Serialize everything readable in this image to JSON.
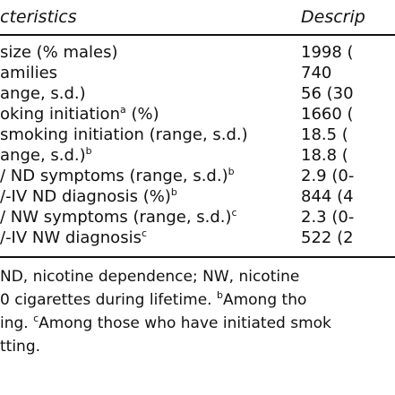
{
  "header": {
    "characteristics": "cteristics",
    "description": "Descrip"
  },
  "rows": [
    {
      "label": " size (% males)",
      "sup": "",
      "label_after": "",
      "value": "1998 ("
    },
    {
      "label": "amilies",
      "sup": "",
      "label_after": "",
      "value": "740"
    },
    {
      "label": "ange, s.d.)",
      "sup": "",
      "label_after": "",
      "value": "56 (30"
    },
    {
      "label": "oking initiation",
      "sup": "a",
      "label_after": " (%)",
      "value": "1660 ("
    },
    {
      "label": " smoking initiation (range, s.d.)",
      "sup": "",
      "label_after": "",
      "value": "18.5 ("
    },
    {
      "label": "ange, s.d.)",
      "sup": "b",
      "label_after": "",
      "value": "18.8 ("
    },
    {
      "label": "/ ND symptoms (range, s.d.)",
      "sup": "b",
      "label_after": "",
      "value": "2.9 (0-"
    },
    {
      "label": "/-IV ND diagnosis (%)",
      "sup": "b",
      "label_after": "",
      "value": "844 (4"
    },
    {
      "label": "/ NW symptoms (range, s.d.)",
      "sup": "c",
      "label_after": "",
      "value": "2.3 (0-"
    },
    {
      "label": "/-IV NW diagnosis",
      "sup": "c",
      "label_after": "",
      "value": "522 (2"
    }
  ],
  "footnote": {
    "line1": "ND, nicotine dependence; NW, nicotine",
    "line2_a": "0 cigarettes during lifetime. ",
    "line2_sup": "b",
    "line2_b": "Among tho",
    "line3_a": "ing. ",
    "line3_sup": "c",
    "line3_b": "Among those who have initiated smok",
    "line4": "tting."
  }
}
